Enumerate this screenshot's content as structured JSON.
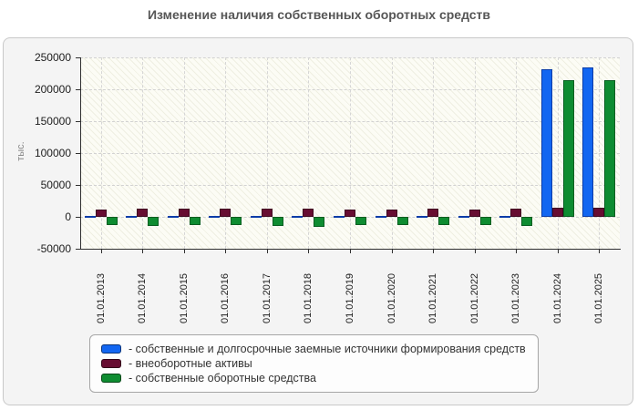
{
  "title": "Изменение наличия собственных оборотных средств",
  "y_axis_title": "тыс.",
  "legend": {
    "items": [
      {
        "label": "- собственные и долгосрочные заемные источники формирования средств"
      },
      {
        "label": "- внеоборотные активы"
      },
      {
        "label": "- собственные оборотные средства"
      }
    ]
  },
  "colors": {
    "series_blue": "#1266f1",
    "series_blue_border": "#0a3ca8",
    "series_maroon": "#670d32",
    "series_maroon_border": "#3f0820",
    "series_green": "#0e8c31",
    "series_green_border": "#075e20",
    "panel_background": "#f4f4f4",
    "axis": "#303030",
    "gridline": "#d2d2d2",
    "title_text": "#565656"
  },
  "chart_data": {
    "type": "bar",
    "title": "Изменение наличия собственных оборотных средств",
    "xlabel": "",
    "ylabel": "тыс.",
    "ylim": [
      -50000,
      250000
    ],
    "yticks": [
      250000,
      200000,
      150000,
      100000,
      50000,
      0,
      -50000
    ],
    "grid": true,
    "legend_position": "bottom",
    "categories": [
      "01.01.2013",
      "01.01.2014",
      "01.01.2015",
      "01.01.2016",
      "01.01.2017",
      "01.01.2018",
      "01.01.2019",
      "01.01.2020",
      "01.01.2021",
      "01.01.2022",
      "01.01.2023",
      "01.01.2024",
      "01.01.2025"
    ],
    "series": [
      {
        "name": "собственные и долгосрочные заемные источники формирования средств",
        "key": "own-and-longterm-sources",
        "color": "#1266f1",
        "border_color": "#0a3ca8",
        "values": [
          2000,
          2000,
          2000,
          2000,
          2000,
          2000,
          1500,
          1500,
          2000,
          1500,
          2000,
          232000,
          234000
        ]
      },
      {
        "name": "внеоборотные активы",
        "key": "non-current-assets",
        "color": "#670d32",
        "border_color": "#3f0820",
        "values": [
          12000,
          13000,
          12500,
          13000,
          13000,
          13500,
          12000,
          12000,
          12500,
          12000,
          13000,
          14000,
          14000
        ]
      },
      {
        "name": "собственные оборотные средства",
        "key": "own-working-capital",
        "color": "#0e8c31",
        "border_color": "#075e20",
        "values": [
          -13000,
          -14000,
          -13500,
          -13000,
          -14000,
          -15000,
          -13000,
          -13000,
          -13500,
          -13500,
          -14000,
          215000,
          214000
        ]
      }
    ]
  }
}
